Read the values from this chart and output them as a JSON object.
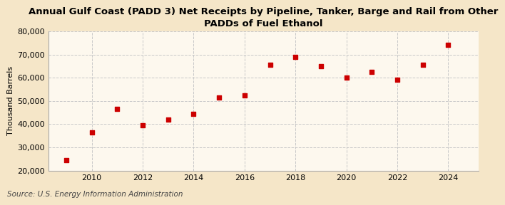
{
  "title": "Annual Gulf Coast (PADD 3) Net Receipts by Pipeline, Tanker, Barge and Rail from Other\nPADDs of Fuel Ethanol",
  "ylabel": "Thousand Barrels",
  "source": "Source: U.S. Energy Information Administration",
  "years": [
    2009,
    2010,
    2011,
    2012,
    2013,
    2014,
    2015,
    2016,
    2017,
    2018,
    2019,
    2020,
    2021,
    2022,
    2023,
    2024
  ],
  "values": [
    24500,
    36500,
    46500,
    39500,
    42000,
    44500,
    51500,
    52500,
    65500,
    69000,
    65000,
    60000,
    62500,
    59000,
    65500,
    74000
  ],
  "marker_color": "#cc0000",
  "marker": "s",
  "marker_size": 4,
  "ylim": [
    20000,
    80000
  ],
  "yticks": [
    20000,
    30000,
    40000,
    50000,
    60000,
    70000,
    80000
  ],
  "xticks": [
    2010,
    2012,
    2014,
    2016,
    2018,
    2020,
    2022,
    2024
  ],
  "background_color": "#f5e6c8",
  "plot_bg_color": "#fdf8ee",
  "grid_color": "#c8c8c8",
  "title_fontsize": 9.5,
  "axis_label_fontsize": 8,
  "tick_fontsize": 8,
  "source_fontsize": 7.5
}
